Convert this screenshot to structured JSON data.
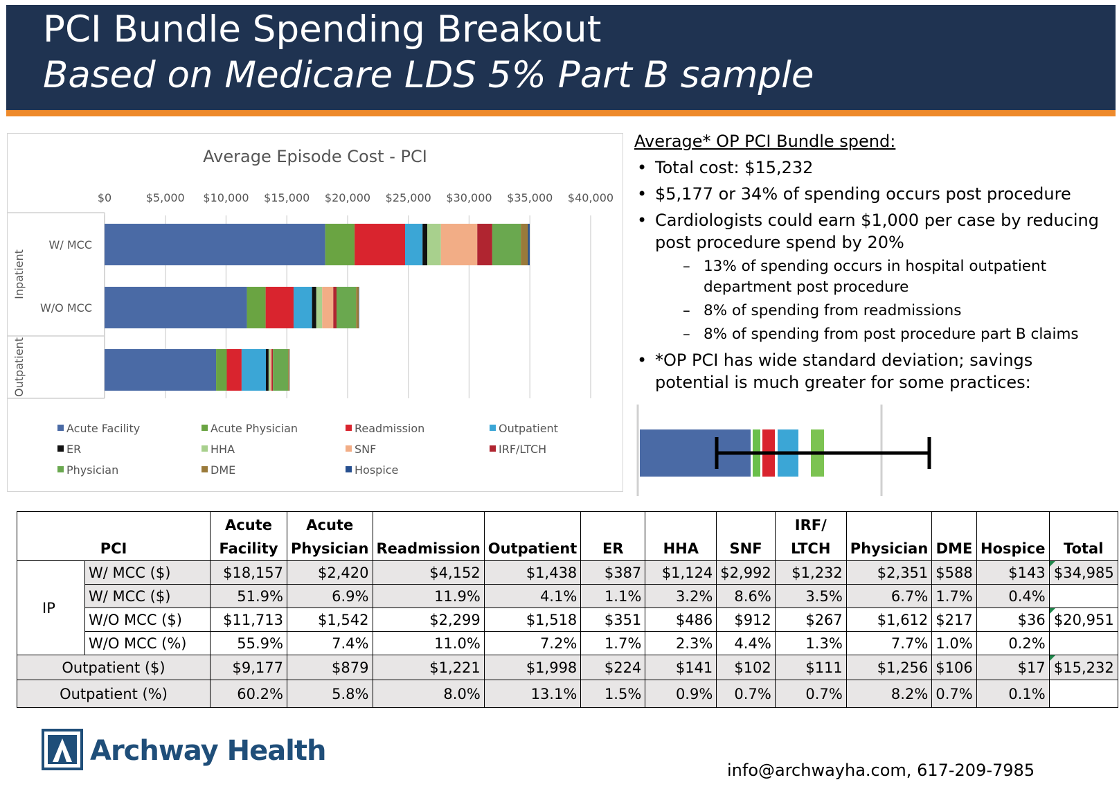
{
  "header": {
    "title": "PCI Bundle Spending Breakout",
    "subtitle": "Based on Medicare LDS 5% Part B sample"
  },
  "colors": {
    "header_bg": "#1f3351",
    "header_accent": "#ee8a2b",
    "logo": "#1f4e79"
  },
  "chart_data": {
    "type": "bar",
    "orientation": "horizontal",
    "stacked": true,
    "title": "Average Episode  Cost - PCI",
    "xlim": [
      0,
      40000
    ],
    "x_ticks": [
      "$0",
      "$5,000",
      "$10,000",
      "$15,000",
      "$20,000",
      "$25,000",
      "$30,000",
      "$35,000",
      "$40,000"
    ],
    "groups": [
      {
        "label": "Inpatient",
        "categories": [
          "W/ MCC",
          "W/O MCC"
        ]
      },
      {
        "label": "Outpatient",
        "categories": [
          ""
        ]
      }
    ],
    "categories": [
      "W/ MCC",
      "W/O MCC",
      ""
    ],
    "legend_position": "bottom",
    "series": [
      {
        "name": "Acute Facility",
        "color": "#4a6aa5",
        "values": [
          18157,
          11713,
          9177
        ]
      },
      {
        "name": "Acute Physician",
        "color": "#6aa442",
        "values": [
          2420,
          1542,
          879
        ]
      },
      {
        "name": "Readmission",
        "color": "#d9242e",
        "values": [
          4152,
          2299,
          1221
        ]
      },
      {
        "name": "Outpatient",
        "color": "#3ba6d6",
        "values": [
          1438,
          1518,
          1998
        ]
      },
      {
        "name": "ER",
        "color": "#111111",
        "values": [
          387,
          351,
          224
        ]
      },
      {
        "name": "HHA",
        "color": "#a8d08d",
        "values": [
          1124,
          486,
          141
        ]
      },
      {
        "name": "SNF",
        "color": "#f2ad86",
        "values": [
          2992,
          912,
          102
        ]
      },
      {
        "name": "IRF/LTCH",
        "color": "#b02530",
        "values": [
          1232,
          267,
          111
        ]
      },
      {
        "name": "Physician",
        "color": "#6aa84f",
        "values": [
          2351,
          1612,
          1256
        ]
      },
      {
        "name": "DME",
        "color": "#9a7a3a",
        "values": [
          588,
          217,
          106
        ]
      },
      {
        "name": "Hospice",
        "color": "#264f8f",
        "values": [
          143,
          36,
          17
        ]
      }
    ]
  },
  "notes": {
    "heading": "Average* OP PCI Bundle spend:",
    "b1": "Total cost: $15,232",
    "b2": "$5,177 or 34% of spending occurs post procedure",
    "b3a": "Cardiologists could earn $1,000 per case by reducing",
    "b3b": "post procedure spend by 20%",
    "s1a": "13% of spending occurs in hospital outpatient",
    "s1b": "department post procedure",
    "s2": "8% of spending from readmissions",
    "s3": "8% of spending from post procedure part B claims",
    "b4a": "*OP PCI has wide standard deviation; savings",
    "b4b": "potential is much greater for some practices:"
  },
  "table": {
    "header": {
      "pci": "PCI",
      "acute_facility_1": "Acute",
      "acute_facility_2": "Facility",
      "acute_physician_1": "Acute",
      "acute_physician_2": "Physician",
      "readmission": "Readmission",
      "outpatient": "Outpatient",
      "er": "ER",
      "hha": "HHA",
      "snf": "SNF",
      "irf_1": "IRF/",
      "irf_2": "LTCH",
      "physician": "Physician",
      "dme": "DME",
      "hospice": "Hospice",
      "total": "Total"
    },
    "ip_label": "IP",
    "rows": [
      {
        "label": "W/ MCC ($)",
        "cells": [
          "$18,157",
          "$2,420",
          "$4,152",
          "$1,438",
          "$387",
          "$1,124",
          "$2,992",
          "$1,232",
          "$2,351",
          "$588",
          "$143"
        ],
        "total": "$34,985"
      },
      {
        "label": "W/ MCC ($)",
        "cells": [
          "51.9%",
          "6.9%",
          "11.9%",
          "4.1%",
          "1.1%",
          "3.2%",
          "8.6%",
          "3.5%",
          "6.7%",
          "1.7%",
          "0.4%"
        ],
        "total": ""
      },
      {
        "label": "W/O MCC ($)",
        "cells": [
          "$11,713",
          "$1,542",
          "$2,299",
          "$1,518",
          "$351",
          "$486",
          "$912",
          "$267",
          "$1,612",
          "$217",
          "$36"
        ],
        "total": "$20,951"
      },
      {
        "label": "W/O MCC (%)",
        "cells": [
          "55.9%",
          "7.4%",
          "11.0%",
          "7.2%",
          "1.7%",
          "2.3%",
          "4.4%",
          "1.3%",
          "7.7%",
          "1.0%",
          "0.2%"
        ],
        "total": ""
      },
      {
        "label": "Outpatient ($)",
        "cells": [
          "$9,177",
          "$879",
          "$1,221",
          "$1,998",
          "$224",
          "$141",
          "$102",
          "$111",
          "$1,256",
          "$106",
          "$17"
        ],
        "total": "$15,232"
      },
      {
        "label": "Outpatient (%)",
        "cells": [
          "60.2%",
          "5.8%",
          "8.0%",
          "13.1%",
          "1.5%",
          "0.9%",
          "0.7%",
          "0.7%",
          "8.2%",
          "0.7%",
          "0.1%"
        ],
        "total": ""
      }
    ]
  },
  "footer": {
    "logo_text": "Archway Health",
    "contact": "info@archwayha.com, 617-209-7985"
  }
}
